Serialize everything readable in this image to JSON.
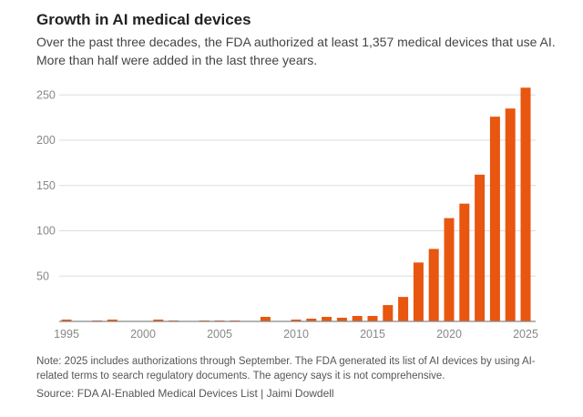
{
  "title": "Growth in AI medical devices",
  "subtitle": "Over the past three decades, the FDA authorized at least 1,357 medical devices that use AI. More than half were added in the last three years.",
  "note": "Note: 2025 includes authorizations through September. The FDA generated its list of AI devices by using AI-related terms to search regulatory documents. The agency says it is not comprehensive.",
  "source": "Source: FDA AI-Enabled Medical Devices List | Jaimi Dowdell",
  "chart_data": {
    "type": "bar",
    "color": "#e8560f",
    "categories": [
      1995,
      1996,
      1997,
      1998,
      1999,
      2000,
      2001,
      2002,
      2003,
      2004,
      2005,
      2006,
      2007,
      2008,
      2009,
      2010,
      2011,
      2012,
      2013,
      2014,
      2015,
      2016,
      2017,
      2018,
      2019,
      2020,
      2021,
      2022,
      2023,
      2024,
      2025
    ],
    "values": [
      2,
      0,
      1,
      2,
      0,
      0,
      2,
      1,
      0,
      1,
      1,
      1,
      0,
      5,
      0,
      2,
      3,
      5,
      4,
      6,
      6,
      18,
      27,
      65,
      80,
      114,
      130,
      162,
      226,
      235,
      258
    ],
    "xticks": [
      "1995",
      "2000",
      "2005",
      "2010",
      "2015",
      "2020",
      "2025"
    ],
    "yticks": [
      "50",
      "100",
      "150",
      "200",
      "250"
    ],
    "ylim": [
      0,
      260
    ],
    "grid": true
  }
}
